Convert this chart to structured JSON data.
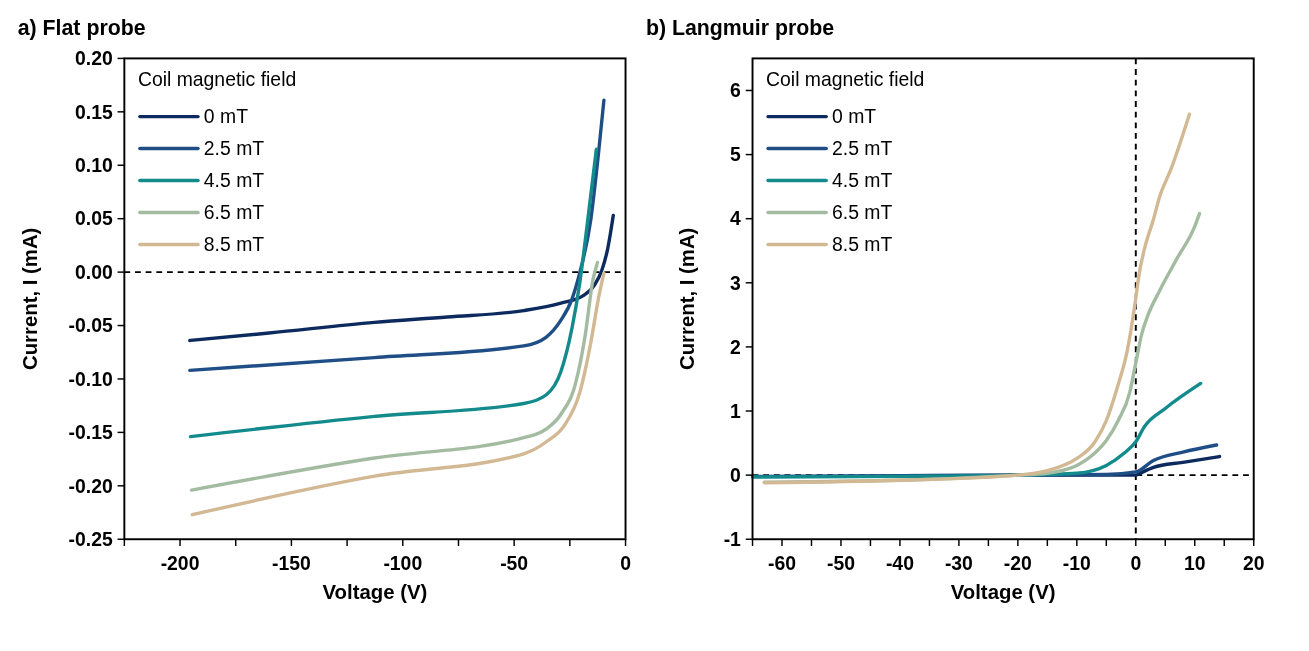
{
  "chart_data": [
    {
      "type": "line",
      "title": "a) Flat probe",
      "xlabel": "Voltage (V)",
      "ylabel": "Current, I (mA)",
      "legend_title": "Coil magnetic field",
      "legend": "top left",
      "grid": false,
      "xlim": [
        -225,
        0
      ],
      "xticks": [
        {
          "value": -225,
          "label": null
        },
        -200,
        {
          "value": -175,
          "label": null
        },
        -150,
        {
          "value": -125,
          "label": null
        },
        -100,
        {
          "value": -75,
          "label": null
        },
        -50,
        {
          "value": -25,
          "label": null
        },
        0
      ],
      "ylim": [
        -0.25,
        0.2
      ],
      "yticks": [
        {
          "value": 0.2,
          "label": "0.20"
        },
        0.15,
        {
          "value": 0.1,
          "label": "0.10"
        },
        0.05,
        {
          "value": 0,
          "label": "0.00"
        },
        -0.05,
        {
          "value": -0.1,
          "label": "-0.10"
        },
        -0.15,
        {
          "value": -0.2,
          "label": "-0.20"
        },
        -0.25
      ],
      "ref_lines": [
        {
          "axis": "y",
          "value": 0,
          "line_style": "dashed",
          "color": "#000000"
        }
      ],
      "series": [
        {
          "name": "0 mT",
          "color": "#0d2a5e",
          "x": [
            -195.6,
            -160,
            -112.7,
            -80,
            -45.7,
            -29,
            -19,
            -13.9,
            -10.6,
            -8,
            -5.5
          ],
          "values": [
            -0.064,
            -0.057,
            -0.047,
            -0.042,
            -0.036,
            -0.029,
            -0.022,
            -0.012,
            0.002,
            0.022,
            0.053
          ]
        },
        {
          "name": "2.5 mT",
          "color": "#1f4e86",
          "x": [
            -195.6,
            -112.7,
            -45.7,
            -35.7,
            -29,
            -24,
            -20.6,
            -15.6,
            -12.2,
            -9.7
          ],
          "values": [
            -0.092,
            -0.08,
            -0.069,
            -0.061,
            -0.045,
            -0.025,
            -0.001,
            0.049,
            0.11,
            0.161
          ]
        },
        {
          "name": "4.5 mT",
          "color": "#138a8c",
          "x": [
            -195.3,
            -112.7,
            -45.7,
            -35.7,
            -29,
            -24,
            -20.6,
            -17.3,
            -13.1
          ],
          "values": [
            -0.154,
            -0.135,
            -0.123,
            -0.115,
            -0.093,
            -0.052,
            -0.011,
            0.043,
            0.115
          ]
        },
        {
          "name": "6.5 mT",
          "color": "#a3bba0",
          "x": [
            -194.8,
            -112.7,
            -45.7,
            -35.7,
            -29,
            -22.3,
            -18.1,
            -14.7,
            -12.6
          ],
          "values": [
            -0.204,
            -0.174,
            -0.155,
            -0.147,
            -0.133,
            -0.103,
            -0.059,
            -0.008,
            0.009
          ]
        },
        {
          "name": "8.5 mT",
          "color": "#d2b893",
          "x": [
            -194.5,
            -112.7,
            -45.7,
            -35.7,
            -27.3,
            -20.6,
            -15.6,
            -12.2,
            -9.7
          ],
          "values": [
            -0.227,
            -0.191,
            -0.17,
            -0.159,
            -0.143,
            -0.113,
            -0.066,
            -0.025,
            -0.001
          ]
        }
      ]
    },
    {
      "type": "line",
      "title": "b) Langmuir probe",
      "xlabel": "Voltage (V)",
      "ylabel": "Current, I (mA)",
      "legend_title": "Coil magnetic field",
      "legend": "top left",
      "grid": false,
      "xlim": [
        -65,
        20
      ],
      "xticks": [
        {
          "value": -65,
          "label": null
        },
        -60,
        {
          "value": -55,
          "label": null
        },
        -50,
        {
          "value": -45,
          "label": null
        },
        -40,
        {
          "value": -35,
          "label": null
        },
        -30,
        {
          "value": -25,
          "label": null
        },
        -20,
        {
          "value": -15,
          "label": null
        },
        -10,
        {
          "value": -5,
          "label": null
        },
        0,
        {
          "value": 5,
          "label": null
        },
        10,
        {
          "value": 15,
          "label": null
        },
        20
      ],
      "ylim": [
        -1,
        6.5
      ],
      "yticks": [
        -1,
        0,
        1,
        2,
        3,
        4,
        5,
        6
      ],
      "ref_lines": [
        {
          "axis": "y",
          "value": 0,
          "line_style": "dashed",
          "color": "#000000"
        },
        {
          "axis": "x",
          "value": 0,
          "line_style": "dashed",
          "color": "#000000"
        }
      ],
      "series": [
        {
          "name": "0 mT",
          "color": "#0d2a5e",
          "x": [
            -40,
            -20,
            -5,
            0,
            0.5,
            3,
            8,
            14.2
          ],
          "values": [
            -0.01,
            0,
            0,
            0,
            0.02,
            0.12,
            0.2,
            0.29
          ]
        },
        {
          "name": "2.5 mT",
          "color": "#1f4e86",
          "x": [
            -65,
            -40,
            -20,
            -5,
            0,
            3,
            8,
            13.7
          ],
          "values": [
            -0.02,
            -0.01,
            0,
            0.01,
            0.05,
            0.23,
            0.36,
            0.47
          ]
        },
        {
          "name": "4.5 mT",
          "color": "#138a8c",
          "x": [
            -65,
            -40,
            -20,
            -10,
            -5,
            -2,
            0,
            1.5,
            5,
            11
          ],
          "values": [
            -0.03,
            -0.02,
            0,
            0.03,
            0.15,
            0.34,
            0.52,
            0.76,
            1.04,
            1.43
          ]
        },
        {
          "name": "6.5 mT",
          "color": "#a3bba0",
          "x": [
            -63,
            -40,
            -20,
            -15,
            -10,
            -7,
            -5,
            -3,
            -1,
            0,
            1,
            2,
            4,
            7,
            10,
            10.8
          ],
          "values": [
            -0.11,
            -0.08,
            0,
            0.03,
            0.15,
            0.34,
            0.54,
            0.85,
            1.3,
            1.75,
            2.2,
            2.48,
            2.87,
            3.38,
            3.88,
            4.08
          ]
        },
        {
          "name": "8.5 mT",
          "color": "#d2b893",
          "x": [
            -63,
            -40,
            -20,
            -15,
            -10,
            -7,
            -5,
            -3,
            -1.5,
            0,
            0.5,
            1.5,
            3,
            4,
            6,
            9.1
          ],
          "values": [
            -0.12,
            -0.08,
            0,
            0.07,
            0.26,
            0.51,
            0.85,
            1.41,
            1.92,
            2.76,
            3.1,
            3.54,
            3.99,
            4.33,
            4.78,
            5.63
          ]
        }
      ]
    }
  ]
}
